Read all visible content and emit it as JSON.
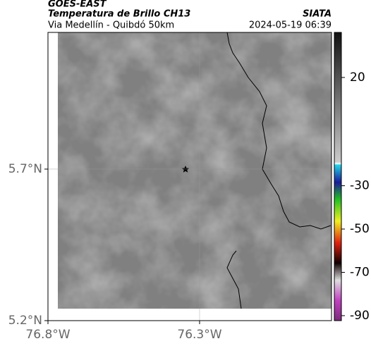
{
  "header": {
    "satellite": "GOES-EAST",
    "product": "Temperatura de Brillo CH13",
    "region": "Via Medellín - Quibdó 50km",
    "source": "SIATA",
    "datetime": "2024-05-19 06:39"
  },
  "map": {
    "xlim": [
      -76.8,
      -75.865
    ],
    "ylim": [
      5.2,
      6.151
    ],
    "xticks": [
      {
        "value": -76.8,
        "label": "76.8°W"
      },
      {
        "value": -76.3,
        "label": "76.3°W"
      }
    ],
    "yticks": [
      {
        "value": 5.7,
        "label": "5.7°N"
      },
      {
        "value": 5.2,
        "label": "5.2°N"
      }
    ],
    "grid": true
  },
  "colorbar": {
    "lim": [
      -92.3,
      40.8
    ],
    "ticks": [
      20,
      -30,
      -50,
      -70,
      -90
    ]
  }
}
